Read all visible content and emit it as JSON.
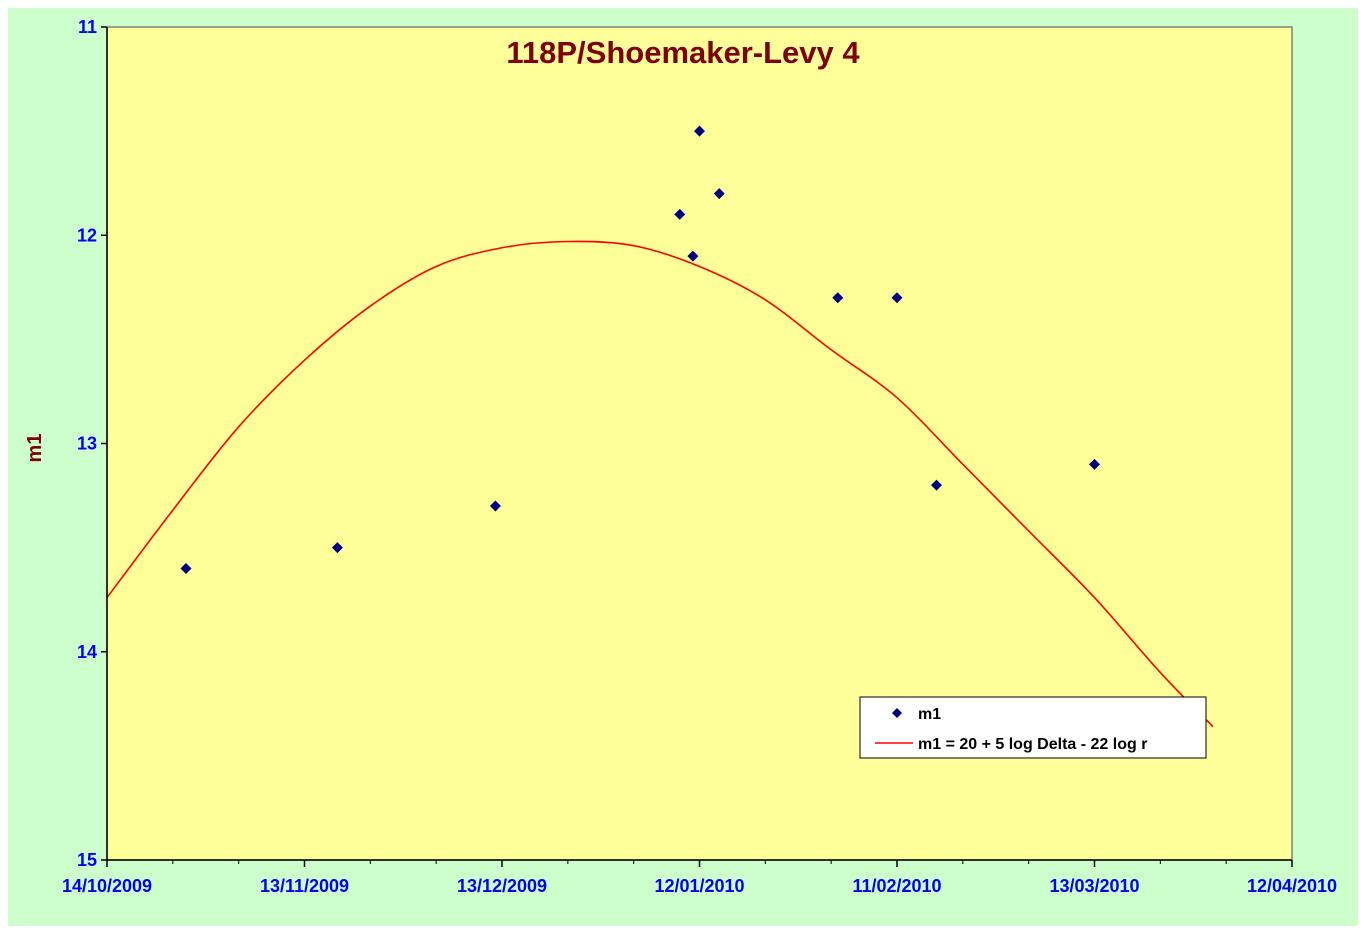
{
  "chart_data": {
    "type": "scatter",
    "title": "118P/Shoemaker-Levy 4",
    "xlabel": "",
    "ylabel": "m1",
    "x_type": "date",
    "xlim": [
      "2009-10-14",
      "2010-04-12"
    ],
    "ylim": [
      15,
      11
    ],
    "y_inverted": true,
    "x_ticks": [
      "14/10/2009",
      "13/11/2009",
      "13/12/2009",
      "12/01/2010",
      "11/02/2010",
      "13/03/2010",
      "12/04/2010"
    ],
    "y_ticks": [
      "11",
      "12",
      "13",
      "14",
      "15"
    ],
    "grid": false,
    "legend_position": "bottom-right",
    "colors": {
      "plot_bg": "#ffff99",
      "outer_bg": "#ccffcc",
      "marker": "#000080",
      "curve": "#ff0000",
      "tick_text": "#0000ff",
      "title_text": "#800000"
    },
    "series": [
      {
        "name": "m1",
        "kind": "scatter",
        "marker": "diamond",
        "points": [
          {
            "x": "2009-10-26",
            "y": 13.6
          },
          {
            "x": "2009-11-18",
            "y": 13.5
          },
          {
            "x": "2009-12-12",
            "y": 13.3
          },
          {
            "x": "2010-01-09",
            "y": 11.9
          },
          {
            "x": "2010-01-11",
            "y": 12.1
          },
          {
            "x": "2010-01-12",
            "y": 11.5
          },
          {
            "x": "2010-01-15",
            "y": 11.8
          },
          {
            "x": "2010-02-02",
            "y": 12.3
          },
          {
            "x": "2010-02-11",
            "y": 12.3
          },
          {
            "x": "2010-02-17",
            "y": 13.2
          },
          {
            "x": "2010-03-13",
            "y": 13.1
          }
        ]
      },
      {
        "name": "m1 = 20 + 5 log Delta - 22 log r",
        "kind": "line",
        "points": [
          {
            "x": "2009-10-14",
            "y": 13.74
          },
          {
            "x": "2009-10-24",
            "y": 13.32
          },
          {
            "x": "2009-11-03",
            "y": 12.92
          },
          {
            "x": "2009-11-13",
            "y": 12.6
          },
          {
            "x": "2009-11-23",
            "y": 12.34
          },
          {
            "x": "2009-12-03",
            "y": 12.15
          },
          {
            "x": "2009-12-13",
            "y": 12.06
          },
          {
            "x": "2009-12-23",
            "y": 12.03
          },
          {
            "x": "2010-01-02",
            "y": 12.05
          },
          {
            "x": "2010-01-12",
            "y": 12.15
          },
          {
            "x": "2010-01-22",
            "y": 12.31
          },
          {
            "x": "2010-02-01",
            "y": 12.55
          },
          {
            "x": "2010-02-11",
            "y": 12.78
          },
          {
            "x": "2010-02-21",
            "y": 13.1
          },
          {
            "x": "2010-03-03",
            "y": 13.42
          },
          {
            "x": "2010-03-13",
            "y": 13.74
          },
          {
            "x": "2010-03-23",
            "y": 14.1
          },
          {
            "x": "2010-03-31",
            "y": 14.36
          }
        ]
      }
    ]
  }
}
